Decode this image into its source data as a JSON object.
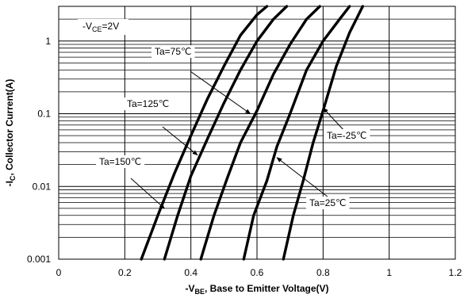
{
  "chart_data": {
    "type": "line",
    "y_scale": "log",
    "grid": true,
    "xlim": [
      0,
      1.2
    ],
    "ylim": [
      0.001,
      3
    ],
    "x_ticks": [
      "0",
      "0.2",
      "0.4",
      "0.6",
      "0.8",
      "1",
      "1.2"
    ],
    "y_ticks": [
      "0.001",
      "0.01",
      "0.1",
      "1"
    ],
    "xlabel": {
      "prefix": "-V",
      "sub": "BE",
      "suffix": ", Base to Emitter Voltage(V)"
    },
    "ylabel": {
      "prefix": "-I",
      "sub": "C",
      "suffix": ", Collector Current(A)"
    },
    "condition": {
      "prefix": "-V",
      "sub": "CE",
      "suffix": "=2V"
    },
    "series": [
      {
        "name": "Ta=150℃",
        "points": [
          [
            0.25,
            0.001
          ],
          [
            0.3,
            0.004
          ],
          [
            0.35,
            0.015
          ],
          [
            0.4,
            0.05
          ],
          [
            0.45,
            0.16
          ],
          [
            0.5,
            0.45
          ],
          [
            0.55,
            1.2
          ],
          [
            0.6,
            2.3
          ],
          [
            0.63,
            3
          ]
        ]
      },
      {
        "name": "Ta=125℃",
        "points": [
          [
            0.32,
            0.001
          ],
          [
            0.36,
            0.004
          ],
          [
            0.4,
            0.014
          ],
          [
            0.45,
            0.045
          ],
          [
            0.5,
            0.14
          ],
          [
            0.55,
            0.4
          ],
          [
            0.6,
            1.0
          ],
          [
            0.65,
            2.0
          ],
          [
            0.69,
            3
          ]
        ]
      },
      {
        "name": "Ta=75℃",
        "points": [
          [
            0.43,
            0.001
          ],
          [
            0.47,
            0.004
          ],
          [
            0.51,
            0.013
          ],
          [
            0.55,
            0.04
          ],
          [
            0.6,
            0.11
          ],
          [
            0.65,
            0.35
          ],
          [
            0.7,
            0.9
          ],
          [
            0.75,
            2.0
          ],
          [
            0.79,
            3
          ]
        ]
      },
      {
        "name": "Ta=25℃",
        "points": [
          [
            0.56,
            0.001
          ],
          [
            0.59,
            0.004
          ],
          [
            0.63,
            0.012
          ],
          [
            0.66,
            0.035
          ],
          [
            0.7,
            0.1
          ],
          [
            0.75,
            0.4
          ],
          [
            0.8,
            1.0
          ],
          [
            0.85,
            2.0
          ],
          [
            0.88,
            3
          ]
        ]
      },
      {
        "name": "Ta=-25℃",
        "points": [
          [
            0.68,
            0.001
          ],
          [
            0.71,
            0.004
          ],
          [
            0.74,
            0.012
          ],
          [
            0.77,
            0.04
          ],
          [
            0.8,
            0.11
          ],
          [
            0.84,
            0.45
          ],
          [
            0.88,
            1.3
          ],
          [
            0.92,
            3
          ]
        ]
      }
    ],
    "annotations": [
      {
        "text": "Ta=75℃",
        "series": "Ta=75℃",
        "arrow_to": [
          0.58,
          0.1
        ]
      },
      {
        "text": "Ta=125℃",
        "series": "Ta=125℃",
        "arrow_to": [
          0.42,
          0.027
        ]
      },
      {
        "text": "Ta=150℃",
        "series": "Ta=150℃",
        "arrow_to": [
          0.32,
          0.005
        ]
      },
      {
        "text": "Ta=-25℃",
        "series": "Ta=-25℃",
        "arrow_to": [
          0.8,
          0.12
        ]
      },
      {
        "text": "Ta=25℃",
        "series": "Ta=25℃",
        "arrow_to": [
          0.66,
          0.025
        ]
      }
    ]
  }
}
